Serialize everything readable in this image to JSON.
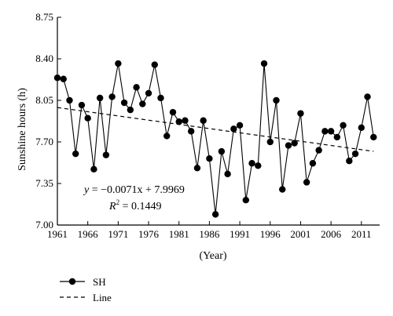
{
  "chart_data": {
    "type": "line",
    "title": "",
    "xlabel": "(Year)",
    "ylabel": "Sunshine hours (h)",
    "xlim": [
      1961,
      2014
    ],
    "ylim": [
      7.0,
      8.75
    ],
    "x_ticks": [
      1961,
      1966,
      1971,
      1976,
      1981,
      1986,
      1991,
      1996,
      2001,
      2006,
      2011
    ],
    "y_ticks": [
      "7.00",
      "7.35",
      "7.70",
      "8.05",
      "8.40",
      "8.75"
    ],
    "grid": false,
    "legend_position": "bottom-left",
    "series": [
      {
        "name": "SH",
        "style": "line-with-markers",
        "color": "#000000",
        "x": [
          1961,
          1962,
          1963,
          1964,
          1965,
          1966,
          1967,
          1968,
          1969,
          1970,
          1971,
          1972,
          1973,
          1974,
          1975,
          1976,
          1977,
          1978,
          1979,
          1980,
          1981,
          1982,
          1983,
          1984,
          1985,
          1986,
          1987,
          1988,
          1989,
          1990,
          1991,
          1992,
          1993,
          1994,
          1995,
          1996,
          1997,
          1998,
          1999,
          2000,
          2001,
          2002,
          2003,
          2004,
          2005,
          2006,
          2007,
          2008,
          2009,
          2010,
          2011,
          2012,
          2013
        ],
        "y": [
          8.24,
          8.23,
          8.05,
          7.6,
          8.01,
          7.9,
          7.47,
          8.07,
          7.59,
          8.08,
          8.36,
          8.03,
          7.97,
          8.16,
          8.02,
          8.11,
          8.35,
          8.07,
          7.75,
          7.95,
          7.87,
          7.88,
          7.79,
          7.48,
          7.88,
          7.56,
          7.09,
          7.62,
          7.43,
          7.81,
          7.84,
          7.21,
          7.52,
          7.5,
          8.36,
          7.7,
          8.05,
          7.3,
          7.67,
          7.69,
          7.94,
          7.36,
          7.52,
          7.63,
          7.79,
          7.79,
          7.74,
          7.84,
          7.54,
          7.6,
          7.82,
          8.08,
          7.74
        ]
      },
      {
        "name": "Line",
        "style": "dashed",
        "color": "#000000",
        "slope": -0.0071,
        "intercept": 7.9969,
        "x_index_start": 1961
      }
    ],
    "annotations": {
      "equation_lhs": "y",
      "equation_rhs": " = −0.0071x + 7.9969",
      "r2_label": "R",
      "r2_exp": "2",
      "r2_value": " = 0.1449"
    }
  }
}
